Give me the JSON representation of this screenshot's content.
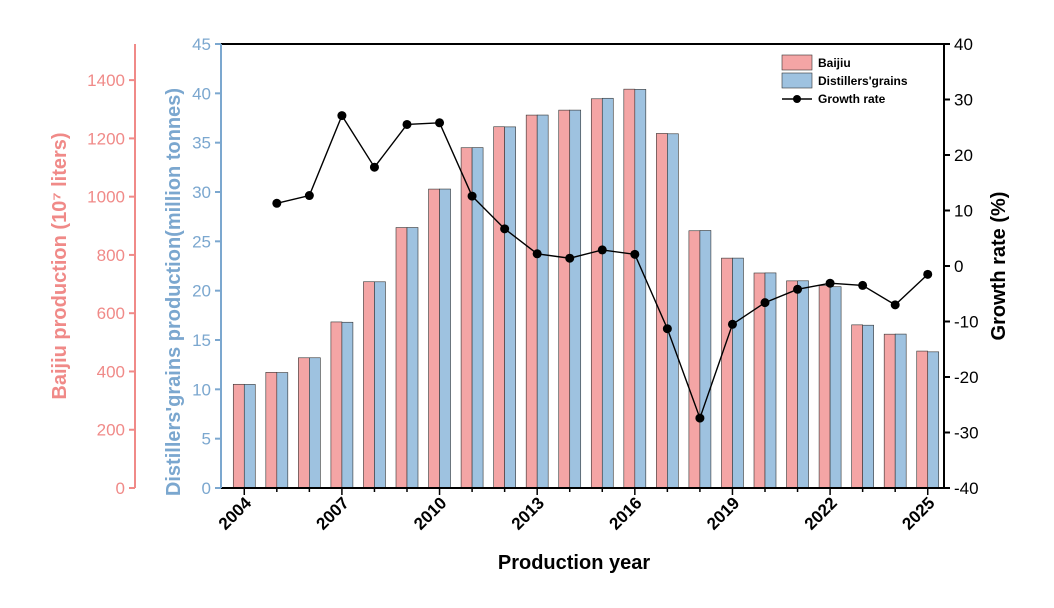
{
  "chart_data": {
    "type": "bar",
    "x_title": "Production year",
    "left_axis_outer": {
      "title": "Baijiu production (10⁷ liters)",
      "ticks": [
        "0",
        "200",
        "400",
        "600",
        "800",
        "1000",
        "1200",
        "1400"
      ],
      "ylim": [
        0,
        1524
      ],
      "color": "#f08a88"
    },
    "left_axis_inner": {
      "title": "Distillers'grains production(million tonnes)",
      "ticks": [
        "0",
        "5",
        "10",
        "15",
        "20",
        "25",
        "30",
        "35",
        "40",
        "45"
      ],
      "ylim": [
        0,
        45
      ],
      "color": "#7ba7cf"
    },
    "right_axis": {
      "title": "Growth rate (%)",
      "ticks": [
        "-40",
        "-30",
        "-20",
        "-10",
        "0",
        "10",
        "20",
        "30",
        "40"
      ],
      "ylim": [
        -40,
        40
      ]
    },
    "x": [
      2004,
      2005,
      2006,
      2007,
      2008,
      2009,
      2010,
      2011,
      2012,
      2013,
      2014,
      2015,
      2016,
      2017,
      2018,
      2019,
      2020,
      2021,
      2022,
      2023,
      2024,
      2025
    ],
    "x_tick_labels": [
      "2004",
      "2007",
      "2010",
      "2013",
      "2016",
      "2019",
      "2022",
      "2025"
    ],
    "series": [
      {
        "name": "Baijiu",
        "axis": "left_outer",
        "color": "#f4a5a5",
        "values": [
          356,
          397,
          447,
          570,
          708,
          894,
          1026,
          1168,
          1240,
          1280,
          1297,
          1336,
          1369,
          1217,
          883,
          789,
          738,
          711,
          695,
          560,
          528,
          470
        ]
      },
      {
        "name": "Distillers'grains",
        "axis": "left_inner",
        "color": "#9ec2e0",
        "values": [
          10.5,
          11.7,
          13.2,
          16.8,
          20.9,
          26.4,
          30.3,
          34.5,
          36.6,
          37.8,
          38.3,
          39.5,
          40.4,
          35.9,
          26.1,
          23.3,
          21.8,
          21.0,
          20.4,
          16.5,
          15.6,
          13.8
        ]
      },
      {
        "name": "Growth rate",
        "axis": "right",
        "type": "line",
        "color": "#000000",
        "values": [
          null,
          11.3,
          12.7,
          27.1,
          17.8,
          25.5,
          25.8,
          12.6,
          6.7,
          2.2,
          1.4,
          2.9,
          2.1,
          -11.3,
          -27.4,
          -10.5,
          -6.6,
          -4.2,
          -3.1,
          -3.5,
          -7.0,
          -1.5
        ]
      }
    ],
    "legend": {
      "position": "top-right",
      "items": [
        "Baijiu",
        "Distillers'grains",
        "Growth rate"
      ]
    },
    "grid": false
  }
}
